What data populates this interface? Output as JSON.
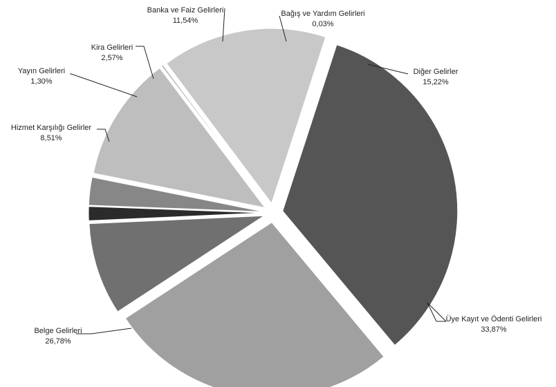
{
  "chart_data": {
    "type": "pie",
    "title": "",
    "slices": [
      {
        "label": "Üye Kayıt ve Ödenti Gelirleri",
        "value_text": "33,87%",
        "value": 33.87,
        "color": "#555555"
      },
      {
        "label": "Belge Gelirleri",
        "value_text": "26,78%",
        "value": 26.78,
        "color": "#a0a0a0"
      },
      {
        "label": "Hizmet Karşılığı Gelirler",
        "value_text": "8,51%",
        "value": 8.51,
        "color": "#707070"
      },
      {
        "label": "Yayın Gelirleri",
        "value_text": "1,30%",
        "value": 1.3,
        "color": "#2b2b2b"
      },
      {
        "label": "Kira Gelirleri",
        "value_text": "2,57%",
        "value": 2.57,
        "color": "#878787"
      },
      {
        "label": "Banka ve Faiz Gelirleri",
        "value_text": "11,54%",
        "value": 11.54,
        "color": "#bebebe"
      },
      {
        "label": "Bağış ve Yardım Gelirleri",
        "value_text": "0,03%",
        "value": 0.03,
        "color": "#999999"
      },
      {
        "label": "Diğer Gelirler",
        "value_text": "15,22%",
        "value": 15.22,
        "color": "#c8c8c8"
      }
    ]
  }
}
